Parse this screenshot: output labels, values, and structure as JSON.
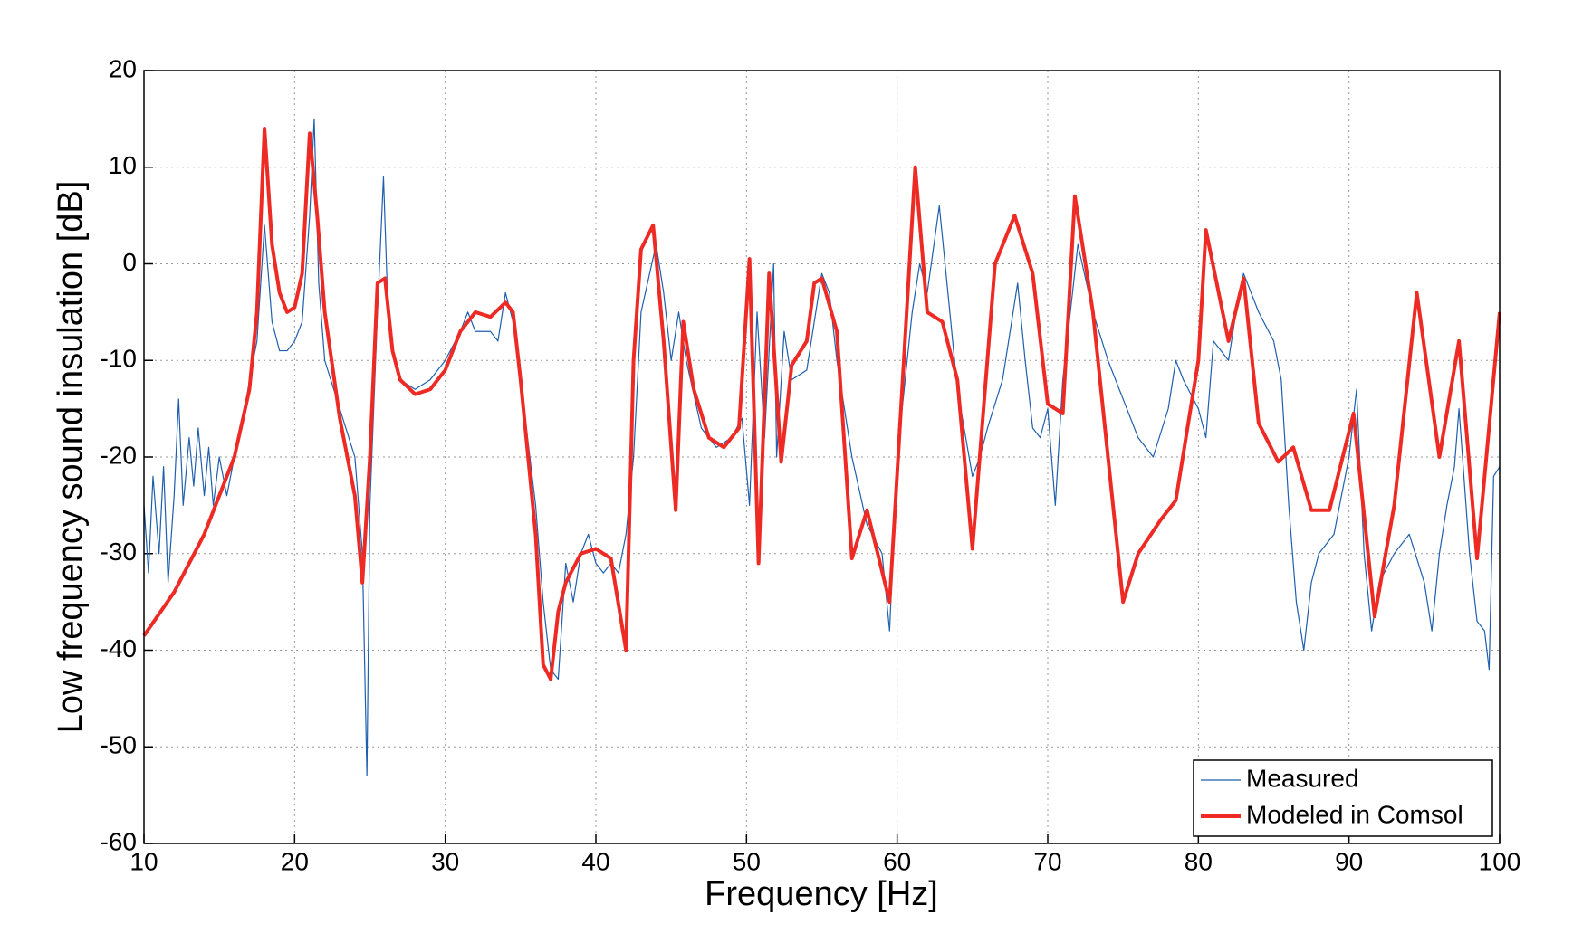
{
  "chart_data": {
    "type": "line",
    "xlabel": "Frequency [Hz]",
    "ylabel": "Low frequency sound insulation [dB]",
    "xlim": [
      10,
      100
    ],
    "xticks": [
      10,
      20,
      30,
      40,
      50,
      60,
      70,
      80,
      90,
      100
    ],
    "ylim": [
      -60,
      20
    ],
    "yticks": [
      -60,
      -50,
      -40,
      -30,
      -20,
      -10,
      0,
      10,
      20
    ],
    "grid": true,
    "legend": "lower right",
    "series": [
      {
        "name": "Measured",
        "color": "#1f5fae",
        "width": 1.2,
        "x": [
          10,
          10.3,
          10.6,
          11,
          11.3,
          11.6,
          12,
          12.3,
          12.6,
          13,
          13.3,
          13.6,
          14,
          14.3,
          14.6,
          15,
          15.5,
          16,
          16.5,
          17,
          17.5,
          18,
          18.5,
          19,
          19.5,
          20,
          20.5,
          21,
          21.3,
          21.6,
          22,
          23,
          24,
          24.5,
          24.8,
          25,
          25.5,
          25.9,
          26.2,
          26.6,
          27,
          28,
          29,
          30,
          31,
          31.5,
          32,
          33,
          33.5,
          34,
          34.5,
          35,
          36,
          36.5,
          37,
          37.5,
          38,
          38.5,
          39,
          39.5,
          40,
          40.5,
          41,
          41.5,
          42,
          42.5,
          43,
          44,
          44.5,
          45,
          45.5,
          46,
          47,
          48,
          49,
          49.7,
          50.2,
          50.7,
          51.2,
          51.8,
          52,
          52.5,
          53,
          54,
          55,
          55.5,
          56,
          57,
          58,
          59,
          59.5,
          60,
          61,
          61.5,
          62,
          62.8,
          63.5,
          64,
          65,
          65.5,
          66,
          67,
          68,
          68.5,
          69,
          69.5,
          70,
          70.5,
          71,
          72,
          73,
          74,
          75,
          76,
          77,
          78,
          78.5,
          79,
          80,
          80.5,
          81,
          82,
          82.5,
          83,
          83.5,
          84,
          85,
          85.5,
          86,
          86.5,
          87,
          87.5,
          88,
          89,
          90,
          90.5,
          91,
          91.5,
          92,
          93,
          94,
          95,
          95.5,
          96,
          96.5,
          97,
          97.3,
          98,
          98.5,
          99,
          99.3,
          99.6,
          100
        ],
        "values": [
          -25,
          -32,
          -22,
          -30,
          -21,
          -33,
          -24,
          -14,
          -25,
          -18,
          -23,
          -17,
          -24,
          -19,
          -25,
          -20,
          -24,
          -20,
          -17,
          -12,
          -8,
          4,
          -6,
          -9,
          -9,
          -8,
          -6,
          5,
          15,
          -2,
          -10,
          -15,
          -20,
          -30,
          -53,
          -25,
          -5,
          9,
          -5,
          -10,
          -12,
          -13,
          -12,
          -10,
          -7,
          -5,
          -7,
          -7,
          -8,
          -3,
          -6,
          -12,
          -25,
          -35,
          -42,
          -43,
          -31,
          -35,
          -30,
          -28,
          -31,
          -32,
          -31,
          -32,
          -28,
          -20,
          -5,
          2,
          -3,
          -10,
          -5,
          -10,
          -17,
          -19,
          -18,
          -16,
          -25,
          -5,
          -18,
          0,
          -20,
          -7,
          -12,
          -11,
          -1,
          -3,
          -10,
          -20,
          -27,
          -30,
          -38,
          -20,
          -5,
          0,
          -3,
          6,
          -5,
          -13,
          -22,
          -20,
          -17,
          -12,
          -2,
          -10,
          -17,
          -18,
          -15,
          -25,
          -12,
          2,
          -5,
          -10,
          -14,
          -18,
          -20,
          -15,
          -10,
          -12,
          -15,
          -18,
          -8,
          -10,
          -5,
          -1,
          -3,
          -5,
          -8,
          -12,
          -25,
          -35,
          -40,
          -33,
          -30,
          -28,
          -20,
          -13,
          -30,
          -38,
          -33,
          -30,
          -28,
          -33,
          -38,
          -30,
          -25,
          -21,
          -15,
          -30,
          -37,
          -38,
          -42,
          -22,
          -21
        ]
      },
      {
        "name": "Modeled in Comsol",
        "color": "#ee2a24",
        "width": 4,
        "x": [
          10,
          12,
          14,
          16,
          17,
          17.5,
          18,
          18.5,
          19,
          19.5,
          20,
          20.5,
          21,
          21.5,
          22,
          23,
          24,
          24.5,
          25,
          25.5,
          26,
          26.5,
          27,
          28,
          29,
          30,
          31,
          32,
          33,
          34,
          34.5,
          35,
          36,
          36.5,
          37,
          37.5,
          38,
          39,
          40,
          41,
          42,
          42.5,
          43,
          43.8,
          44.5,
          45.3,
          45.8,
          46.5,
          47.5,
          48.5,
          49.5,
          50.2,
          50.8,
          51.5,
          52.3,
          53,
          54,
          54.5,
          55,
          56,
          57,
          58,
          59.5,
          61.2,
          62,
          63,
          64,
          65,
          66.5,
          67.8,
          69,
          70,
          71,
          71.8,
          73,
          74,
          75,
          76,
          77.5,
          78.5,
          80,
          80.5,
          82,
          83,
          84,
          85.3,
          86.3,
          87.5,
          88.7,
          90.3,
          91.7,
          93,
          94.5,
          96,
          97.3,
          98.5,
          100
        ],
        "values": [
          -38.5,
          -34,
          -28,
          -20,
          -13,
          -5,
          14,
          2,
          -3,
          -5,
          -4.5,
          -1,
          13.5,
          5,
          -5,
          -16,
          -24,
          -33,
          -20,
          -2,
          -1.5,
          -9,
          -12,
          -13.5,
          -13,
          -11,
          -7,
          -5,
          -5.5,
          -4,
          -5,
          -12,
          -28,
          -41.5,
          -43,
          -36,
          -33,
          -30,
          -29.5,
          -30.5,
          -40,
          -10,
          1.5,
          4,
          -8,
          -25.5,
          -6,
          -13,
          -18,
          -19,
          -17,
          0.5,
          -31,
          -1,
          -20.5,
          -10.5,
          -8,
          -2,
          -1.5,
          -7,
          -30.5,
          -25.5,
          -35,
          10,
          -5,
          -6,
          -12,
          -29.5,
          0,
          5,
          -1,
          -14.5,
          -15.5,
          7,
          -5,
          -20,
          -35,
          -30,
          -26.5,
          -24.5,
          -10,
          3.5,
          -8,
          -1.5,
          -16.5,
          -20.5,
          -19,
          -25.5,
          -25.5,
          -15.5,
          -36.5,
          -25,
          -3,
          -20,
          -8,
          -30.5,
          -5
        ]
      }
    ]
  }
}
